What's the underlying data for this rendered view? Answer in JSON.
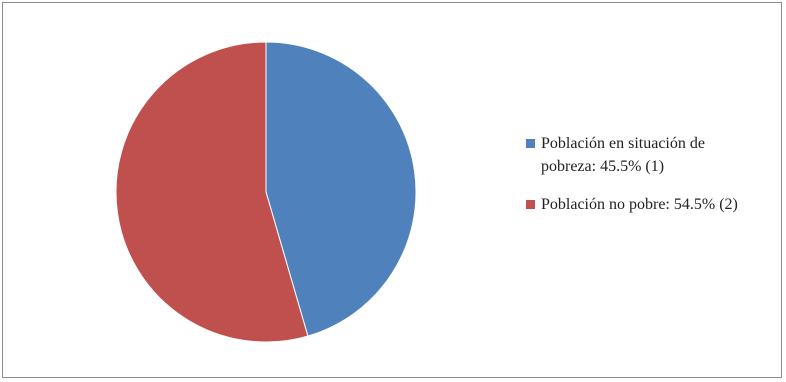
{
  "chart_data": {
    "type": "pie",
    "title": "",
    "slices": [
      {
        "label": "Población en situación de pobreza: 45.5% (1)",
        "value": 45.5,
        "color": "#4f81bd"
      },
      {
        "label": "Población no pobre: 54.5% (2)",
        "value": 54.5,
        "color": "#c0504d"
      }
    ],
    "legend_position": "right",
    "start_angle": "12 o'clock",
    "direction": "clockwise",
    "slice_border_color": "#ffffff"
  }
}
